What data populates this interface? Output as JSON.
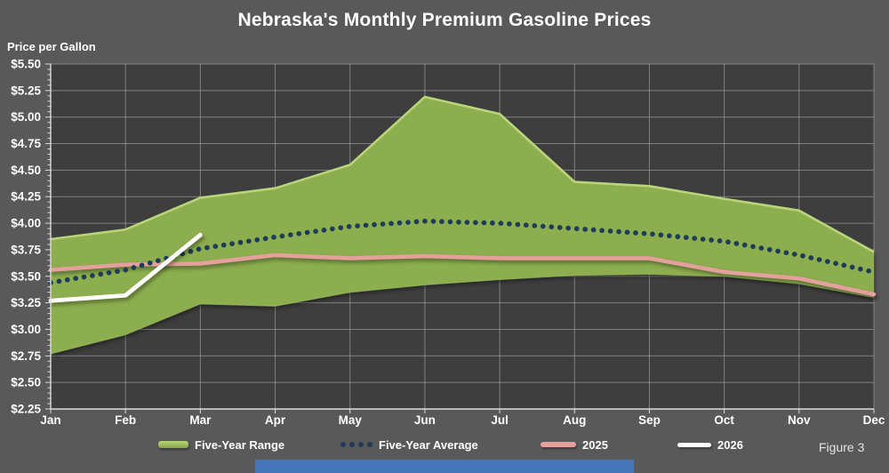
{
  "title": "Nebraska's Monthly Premium Gasoline Prices",
  "y_axis_title": "Price per Gallon",
  "figure_label": "Figure 3",
  "legend": [
    {
      "label": "Five-Year Range"
    },
    {
      "label": "Five-Year Average"
    },
    {
      "label": "2025"
    },
    {
      "label": "2026"
    }
  ],
  "colors": {
    "background": "#595959",
    "plot_background": "#3e3e3e",
    "gridline": "#989898",
    "axis": "#dcdcdc",
    "range_fill": "#8cae4e",
    "range_top_edge": "#b9d47a",
    "range_bottom_edge": "#9cbd60",
    "average_dots": "#1f3b59",
    "line_2025": "#e59f9c",
    "line_2026": "#ffffff",
    "text": "#ffffff",
    "figure_text": "#e3e3e3",
    "bottom_bar": "#4576b8"
  },
  "chart_data": {
    "type": "area",
    "title": "Nebraska's Monthly Premium Gasoline Prices",
    "ylabel": "Price per Gallon",
    "xlabel": "",
    "categories": [
      "Jan",
      "Feb",
      "Mar",
      "Apr",
      "May",
      "Jun",
      "Jul",
      "Aug",
      "Sep",
      "Oct",
      "Nov",
      "Dec"
    ],
    "series": [
      {
        "name": "Five-Year Range",
        "type": "band",
        "max": [
          3.85,
          3.94,
          4.24,
          4.33,
          4.55,
          5.19,
          5.03,
          4.39,
          4.35,
          4.23,
          4.12,
          3.73
        ],
        "min": [
          2.77,
          2.95,
          3.24,
          3.22,
          3.35,
          3.42,
          3.47,
          3.51,
          3.52,
          3.5,
          3.43,
          3.3
        ]
      },
      {
        "name": "Five-Year Average",
        "type": "dotted-line",
        "values": [
          3.44,
          3.56,
          3.76,
          3.87,
          3.97,
          4.02,
          4.0,
          3.95,
          3.9,
          3.83,
          3.7,
          3.54
        ]
      },
      {
        "name": "2025",
        "type": "line",
        "values": [
          3.56,
          3.61,
          3.62,
          3.7,
          3.67,
          3.69,
          3.67,
          3.67,
          3.67,
          3.54,
          3.48,
          3.33
        ]
      },
      {
        "name": "2026",
        "type": "line",
        "values": [
          3.27,
          3.32,
          3.89,
          null,
          null,
          null,
          null,
          null,
          null,
          null,
          null,
          null
        ]
      }
    ],
    "ylim": [
      2.25,
      5.5
    ],
    "ytick_step": 0.25,
    "ytick_labels": [
      "$5.50",
      "$5.25",
      "$5.00",
      "$4.75",
      "$4.50",
      "$4.25",
      "$4.00",
      "$3.75",
      "$3.50",
      "$3.25",
      "$3.00",
      "$2.75",
      "$2.50",
      "$2.25"
    ],
    "grid": true,
    "legend_position": "bottom"
  }
}
